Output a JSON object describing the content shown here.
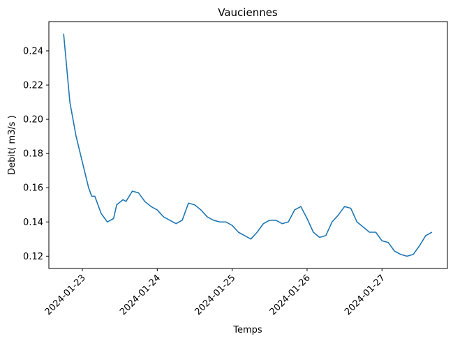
{
  "chart_data": {
    "type": "line",
    "title": "Vauciennes",
    "xlabel": "Temps",
    "ylabel": "Debit( m3/s )",
    "x_tick_labels": [
      "2024-01-23",
      "2024-01-24",
      "2024-01-25",
      "2024-01-26",
      "2024-01-27"
    ],
    "y_tick_labels": [
      "0.12",
      "0.14",
      "0.16",
      "0.18",
      "0.20",
      "0.22",
      "0.24"
    ],
    "y_ticks": [
      0.12,
      0.14,
      0.16,
      0.18,
      0.2,
      0.22,
      0.24
    ],
    "xlim": [
      "2024-01-22 13:16",
      "2024-01-27 20:58"
    ],
    "ylim": [
      0.1128,
      0.2571
    ],
    "grid": false,
    "line_color": "#1f77b4",
    "series": [
      {
        "x": [
          "2024-01-22 18:00",
          "2024-01-22 19:00",
          "2024-01-22 20:00",
          "2024-01-22 22:00",
          "2024-01-23 00:00",
          "2024-01-23 02:00",
          "2024-01-23 03:00",
          "2024-01-23 04:00",
          "2024-01-23 06:00",
          "2024-01-23 08:00",
          "2024-01-23 10:00",
          "2024-01-23 11:00",
          "2024-01-23 13:00",
          "2024-01-23 14:00",
          "2024-01-23 16:00",
          "2024-01-23 18:00",
          "2024-01-23 20:00",
          "2024-01-23 22:00",
          "2024-01-24 00:00",
          "2024-01-24 02:00",
          "2024-01-24 04:00",
          "2024-01-24 06:00",
          "2024-01-24 08:00",
          "2024-01-24 10:00",
          "2024-01-24 12:00",
          "2024-01-24 14:00",
          "2024-01-24 16:00",
          "2024-01-24 18:00",
          "2024-01-24 20:00",
          "2024-01-24 22:00",
          "2024-01-25 00:00",
          "2024-01-25 02:00",
          "2024-01-25 04:00",
          "2024-01-25 06:00",
          "2024-01-25 08:00",
          "2024-01-25 10:00",
          "2024-01-25 12:00",
          "2024-01-25 14:00",
          "2024-01-25 16:00",
          "2024-01-25 18:00",
          "2024-01-25 20:00",
          "2024-01-25 22:00",
          "2024-01-26 00:00",
          "2024-01-26 02:00",
          "2024-01-26 04:00",
          "2024-01-26 06:00",
          "2024-01-26 08:00",
          "2024-01-26 10:00",
          "2024-01-26 12:00",
          "2024-01-26 14:00",
          "2024-01-26 16:00",
          "2024-01-26 18:00",
          "2024-01-26 20:00",
          "2024-01-26 22:00",
          "2024-01-27 00:00",
          "2024-01-27 02:00",
          "2024-01-27 04:00",
          "2024-01-27 06:00",
          "2024-01-27 08:00",
          "2024-01-27 10:00",
          "2024-01-27 12:00",
          "2024-01-27 14:00",
          "2024-01-27 16:00"
        ],
        "values": [
          0.25,
          0.23,
          0.21,
          0.19,
          0.175,
          0.16,
          0.155,
          0.155,
          0.145,
          0.14,
          0.142,
          0.15,
          0.153,
          0.152,
          0.158,
          0.157,
          0.152,
          0.149,
          0.147,
          0.143,
          0.141,
          0.139,
          0.141,
          0.151,
          0.15,
          0.147,
          0.143,
          0.141,
          0.14,
          0.14,
          0.138,
          0.134,
          0.132,
          0.13,
          0.134,
          0.139,
          0.141,
          0.141,
          0.139,
          0.14,
          0.147,
          0.149,
          0.142,
          0.134,
          0.131,
          0.132,
          0.14,
          0.144,
          0.149,
          0.148,
          0.14,
          0.137,
          0.134,
          0.134,
          0.129,
          0.128,
          0.123,
          0.121,
          0.12,
          0.121,
          0.126,
          0.132,
          0.134
        ]
      }
    ]
  }
}
